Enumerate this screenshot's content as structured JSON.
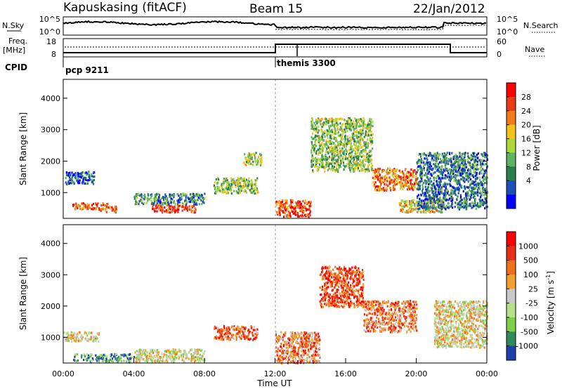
{
  "header": {
    "station": "Kapuskasing (fitACF)",
    "beam": "Beam 15",
    "date": "22/Jan/2012"
  },
  "strip_panels": {
    "nsky_label": "N.Sky",
    "nsky_ticks": [
      "10^5",
      "10^0"
    ],
    "nsearch_label": "N.Search",
    "nsearch_ticks": [
      "10^5",
      "10^0"
    ],
    "freq_label": "Freq.",
    "freq_unit": "[MHz]",
    "freq_ticks": [
      "18",
      "8"
    ],
    "nave_label": "Nave",
    "nave_ticks": [
      "60",
      "0"
    ],
    "cpid_label": "CPID",
    "cpid_entries": [
      {
        "name": "pcp 9211",
        "start_hour": 0
      },
      {
        "name": "themis 3300",
        "start_hour": 12
      }
    ]
  },
  "chart_data": [
    {
      "type": "heatmap",
      "title": "",
      "xlabel": "",
      "ylabel": "Slant Range [km]",
      "x_range_hours": [
        0,
        24
      ],
      "ylim": [
        180,
        4600
      ],
      "yticks": [
        "1000",
        "2000",
        "3000",
        "4000"
      ],
      "colorbar": {
        "label": "Power [dB]",
        "ticks": [
          "28",
          "24",
          "20",
          "16",
          "12",
          "8",
          "4"
        ],
        "colors": [
          "#0000ff",
          "#1f4fb5",
          "#2e7d4f",
          "#5fb25f",
          "#a8d83a",
          "#f2c21e",
          "#f07d1a",
          "#e83b18",
          "#ff0000"
        ]
      },
      "echo_regions": [
        {
          "t0": 0.1,
          "t1": 1.8,
          "r0": 1300,
          "r1": 1700,
          "level": 0.2
        },
        {
          "t0": 0.5,
          "t1": 2.5,
          "r0": 500,
          "r1": 700,
          "level": 0.8
        },
        {
          "t0": 2.0,
          "t1": 3.0,
          "r0": 400,
          "r1": 600,
          "level": 0.7
        },
        {
          "t0": 5.0,
          "t1": 7.5,
          "r0": 400,
          "r1": 650,
          "level": 0.85
        },
        {
          "t0": 4.0,
          "t1": 8.0,
          "r0": 650,
          "r1": 1000,
          "level": 0.3
        },
        {
          "t0": 8.5,
          "t1": 11.0,
          "r0": 1000,
          "r1": 1500,
          "level": 0.45
        },
        {
          "t0": 10.2,
          "t1": 11.2,
          "r0": 1900,
          "r1": 2300,
          "level": 0.5
        },
        {
          "t0": 12.0,
          "t1": 14.0,
          "r0": 250,
          "r1": 800,
          "level": 0.85
        },
        {
          "t0": 14.0,
          "t1": 17.5,
          "r0": 1700,
          "r1": 3400,
          "level": 0.45
        },
        {
          "t0": 17.5,
          "t1": 20.0,
          "r0": 1100,
          "r1": 1800,
          "level": 0.75
        },
        {
          "t0": 19.0,
          "t1": 21.5,
          "r0": 400,
          "r1": 800,
          "level": 0.6
        },
        {
          "t0": 20.0,
          "t1": 24.0,
          "r0": 500,
          "r1": 2300,
          "level": 0.25
        }
      ]
    },
    {
      "type": "heatmap",
      "title": "",
      "xlabel": "Time UT",
      "ylabel": "Slant Range [km]",
      "x_range_hours": [
        0,
        24
      ],
      "xticks": [
        "00:00",
        "04:00",
        "08:00",
        "12:00",
        "16:00",
        "20:00",
        "00:00"
      ],
      "ylim": [
        180,
        4600
      ],
      "yticks": [
        "1000",
        "2000",
        "3000",
        "4000"
      ],
      "colorbar": {
        "label": "Velocity [m s^-1]",
        "ticks": [
          "1000",
          "500",
          "100",
          "25",
          "-25",
          "-100",
          "-500",
          "-1000"
        ],
        "colors": [
          "#1e3fb0",
          "#2f8a5a",
          "#7bcf4a",
          "#b8e08a",
          "#c8c8c8",
          "#f0a030",
          "#f07020",
          "#e83018",
          "#ff0000"
        ]
      },
      "echo_regions": [
        {
          "t0": 0.0,
          "t1": 2.0,
          "r0": 900,
          "r1": 1200,
          "level": 0.5
        },
        {
          "t0": 0.5,
          "t1": 4.0,
          "r0": 250,
          "r1": 500,
          "level": 0.2
        },
        {
          "t0": 4.0,
          "t1": 8.0,
          "r0": 250,
          "r1": 650,
          "level": 0.45
        },
        {
          "t0": 8.5,
          "t1": 11.0,
          "r0": 950,
          "r1": 1400,
          "level": 0.75
        },
        {
          "t0": 12.0,
          "t1": 14.5,
          "r0": 200,
          "r1": 1200,
          "level": 0.7
        },
        {
          "t0": 14.5,
          "t1": 17.0,
          "r0": 2000,
          "r1": 3300,
          "level": 0.8
        },
        {
          "t0": 17.0,
          "t1": 20.0,
          "r0": 1200,
          "r1": 2200,
          "level": 0.7
        },
        {
          "t0": 21.0,
          "t1": 24.0,
          "r0": 700,
          "r1": 2200,
          "level": 0.5
        }
      ]
    }
  ]
}
